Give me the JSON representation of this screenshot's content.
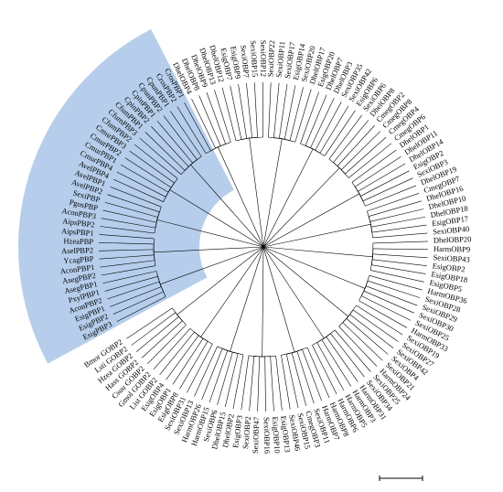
{
  "tree": {
    "labels": [
      "EsigPBP3",
      "EsigPBP2",
      "EsigPBP1",
      "AconPBP2",
      "PxylPBP1",
      "AsegPBP1",
      "AsegPBP2",
      "AconPBP1",
      "YcagPBP",
      "AselPBP2",
      "HzeaPBP",
      "AipsPBP1",
      "AipsPBP2",
      "AconPBP3",
      "PgosPBP",
      "SexiPBP",
      "AvelPBP2",
      "AvelPBP1",
      "AvelPBP4",
      "CmurPBP4",
      "CmurPBP1",
      "CmurPBP2",
      "CmurPBP3",
      "CfumPBP2",
      "CfumPBP3",
      "CfumPBP1",
      "CpinPBP2",
      "CpinPBP1",
      "CpunPBP2",
      "CpunPBP1",
      "CrosPBP2",
      "CrosPBP1",
      "DhelOBP4",
      "DhelOBP8",
      "DhelOBP9",
      "DhelOBP13",
      "DhelOBP12",
      "EsigOBP7",
      "EsigOBP9",
      "SexiOBP7",
      "SexiOBP15",
      "SexiOBP12",
      "SexiOBP22",
      "SexiOBP11",
      "SexiOBP17",
      "EsigOBP14",
      "SexiOBP20",
      "DhelOBP17",
      "EsigOBP20",
      "DhelOBP7",
      "DhelOBP3",
      "SexiOBP35",
      "SexiOBP42",
      "EsigOBP6",
      "SexiOBP6",
      "DhelOBP8",
      "CmegOBP2",
      "CmegOBP8",
      "CmegOBP4",
      "CmegOBP6",
      "DhelOBP1",
      "DhelOBP11",
      "DhelOBP14",
      "EsigOBP2",
      "SexiOBP3",
      "DhelOBP19",
      "CmegOBP7",
      "DhelOBP16",
      "DhelOBP10",
      "DhelOBP18",
      "EsigOBP17",
      "SexiOBP40",
      "DhelOBP20",
      "HarmOBP9",
      "SexiOBP43",
      "EsigOBP2",
      "EsigOBP18",
      "EsigOBP5",
      "HarmOBP36",
      "SexiOBP28",
      "SexiOBP29",
      "SexiOBP30",
      "SexiOBP25",
      "HarmOBP33",
      "SexiOBP19",
      "SexiOBP27",
      "SexiOBP42",
      "SexiOBP4",
      "SexiOBP21",
      "HarmOBP24",
      "SexiOBP25",
      "SexiOBP34",
      "HarmOBP31",
      "HarmOBP3",
      "HarmOBP5",
      "HarmOBP6",
      "HarmOBP8",
      "HarmOBP7",
      "SexiOBP11",
      "CmegOBP3",
      "SexiOBP15",
      "SexiOBP46",
      "EsigOBP13",
      "EsigOBP10",
      "SexiOBP16",
      "SexiOBP47",
      "SexiOBP2",
      "EsigOBP3",
      "DhelOBP2",
      "DhelOBP15",
      "SexiOBP6",
      "HarmOBP15",
      "HarmOBP26",
      "SexiOBP13",
      "SexiOBP31",
      "EsigOBP8",
      "EsigOBP1",
      "EsigOBP4",
      "List GOBP2",
      "Gmol GOBP2",
      "Csuu GOBP2",
      "Hass GOBP2",
      "Hzea GOBP2",
      "Lsti GOBP2",
      "Bmor GOBP2"
    ]
  }
}
